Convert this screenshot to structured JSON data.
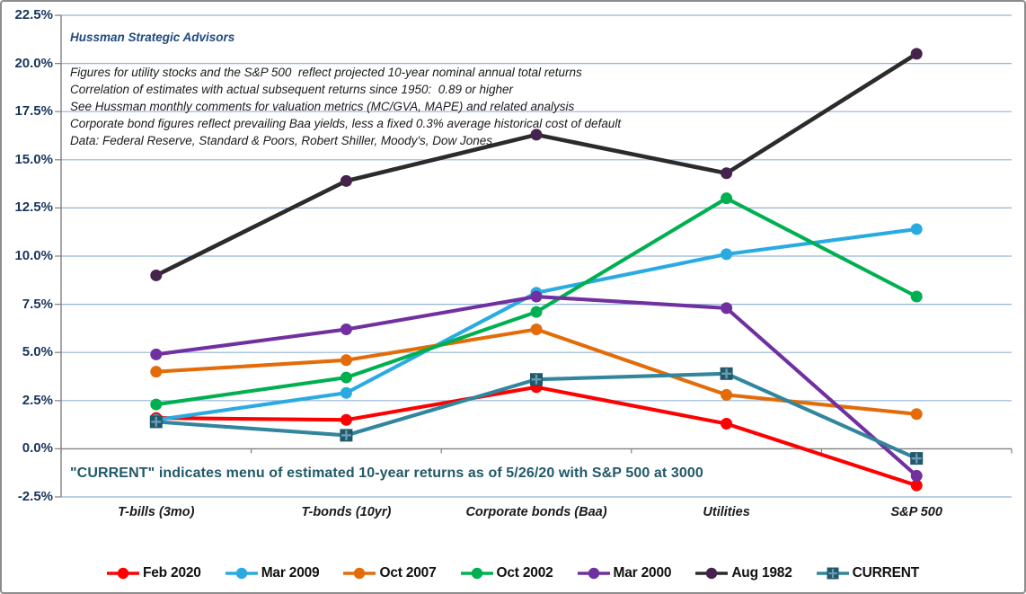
{
  "header": {
    "brand": "Hussman Strategic Advisors",
    "annotation_lines": [
      "Figures for utility stocks and the S&P 500  reflect projected 10-year nominal annual total returns",
      "Correlation of estimates with actual subsequent returns since 1950:  0.89 or higher",
      "See Hussman monthly comments for valuation metrics (MC/GVA, MAPE) and related analysis",
      "Corporate bond figures reflect prevailing Baa yields, less a fixed 0.3% average historical cost of default",
      "Data: Federal Reserve, Standard & Poors, Robert Shiller, Moody's, Dow Jones"
    ]
  },
  "footnote": "\"CURRENT\" indicates menu of estimated 10-year returns as of 5/26/20 with S&P 500 at 3000",
  "colors": {
    "background": "#FFFFFF",
    "frame_border": "#8C8C8C",
    "gridline": "#95B3D7",
    "zero_axis": "#808080",
    "axis": "#808080",
    "ylabel_text": "#17365D",
    "xlabel_text": "#1A1A1A",
    "brand_text": "#1F497D",
    "annotation_text": "#1A1A1A",
    "note_text": "#215968"
  },
  "chart_data": {
    "type": "line",
    "title": "",
    "xlabel": "",
    "ylabel": "",
    "categories": [
      "T-bills (3mo)",
      "T-bonds (10yr)",
      "Corporate bonds (Baa)",
      "Utilities",
      "S&P 500"
    ],
    "series": [
      {
        "name": "Feb 2020",
        "color": "#FF0000",
        "marker": "circle",
        "marker_color": "#FF0000",
        "values": [
          1.6,
          1.5,
          3.2,
          1.3,
          -1.9
        ]
      },
      {
        "name": "Mar 2009",
        "color": "#29ABE2",
        "marker": "circle",
        "marker_color": "#29ABE2",
        "values": [
          1.5,
          2.9,
          8.1,
          10.1,
          11.4
        ]
      },
      {
        "name": "Oct 2007",
        "color": "#E36C09",
        "marker": "circle",
        "marker_color": "#E36C09",
        "values": [
          4.0,
          4.6,
          6.2,
          2.8,
          1.8
        ]
      },
      {
        "name": "Oct 2002",
        "color": "#00B050",
        "marker": "circle",
        "marker_color": "#00B050",
        "values": [
          2.3,
          3.7,
          7.1,
          13.0,
          7.9
        ]
      },
      {
        "name": "Mar 2000",
        "color": "#7030A0",
        "marker": "circle",
        "marker_color": "#7030A0",
        "values": [
          4.9,
          6.2,
          7.9,
          7.3,
          -1.4
        ]
      },
      {
        "name": "Aug 1982",
        "color": "#2B2B2B",
        "marker": "circle",
        "marker_color": "#45234D",
        "values": [
          9.0,
          13.9,
          16.3,
          14.3,
          20.5
        ]
      },
      {
        "name": "CURRENT",
        "color": "#31859C",
        "marker": "square-plus",
        "marker_color": "#215968",
        "marker_cross_color": "#6C9BB8",
        "values": [
          1.4,
          0.7,
          3.6,
          3.9,
          -0.5
        ]
      }
    ],
    "ylim": [
      -2.5,
      22.5
    ],
    "ytick_values": [
      22.5,
      20.0,
      17.5,
      15.0,
      12.5,
      10.0,
      7.5,
      5.0,
      2.5,
      0.0,
      -2.5
    ],
    "ytick_labels": [
      "22.5%",
      "20.0%",
      "17.5%",
      "15.0%",
      "12.5%",
      "10.0%",
      "7.5%",
      "5.0%",
      "2.5%",
      "0.0%",
      "-2.5%"
    ],
    "grid": true,
    "legend_position": "bottom"
  }
}
